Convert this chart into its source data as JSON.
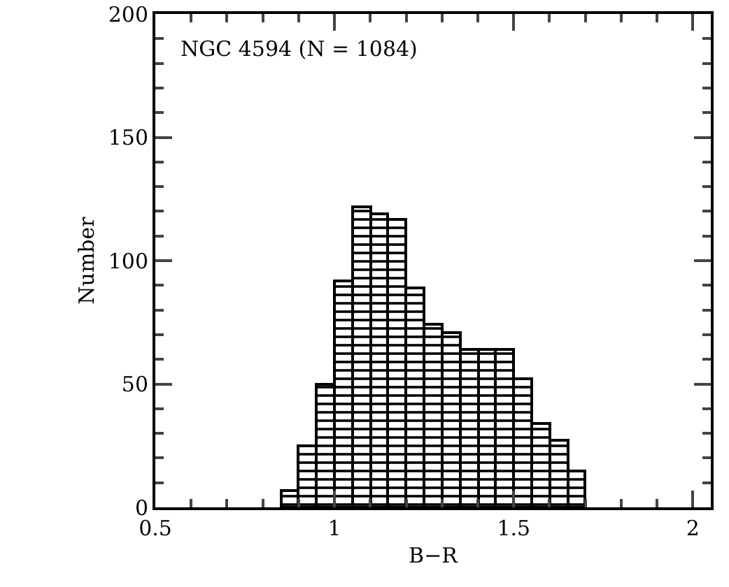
{
  "chart_data": {
    "type": "histogram",
    "xlabel": "B−R",
    "ylabel": "Number",
    "annotations": [
      "NGC 4594 (N = 1084)"
    ],
    "bins": [
      0.85,
      0.9,
      0.95,
      1.0,
      1.05,
      1.1,
      1.15,
      1.2,
      1.25,
      1.3,
      1.35,
      1.4,
      1.45,
      1.5,
      1.55,
      1.6,
      1.65,
      1.7
    ],
    "values": [
      7,
      25,
      50,
      92,
      122,
      119,
      117,
      89,
      74,
      71,
      64,
      64,
      64,
      52,
      34,
      27,
      15
    ],
    "color": "#000000",
    "xlim": [
      0.5,
      2.05
    ],
    "xticks": [
      0.5,
      1,
      1.5,
      2
    ],
    "ylim": [
      0,
      200
    ],
    "yticks": [
      0,
      50,
      100,
      150,
      200
    ],
    "grid": false,
    "legend": false
  }
}
